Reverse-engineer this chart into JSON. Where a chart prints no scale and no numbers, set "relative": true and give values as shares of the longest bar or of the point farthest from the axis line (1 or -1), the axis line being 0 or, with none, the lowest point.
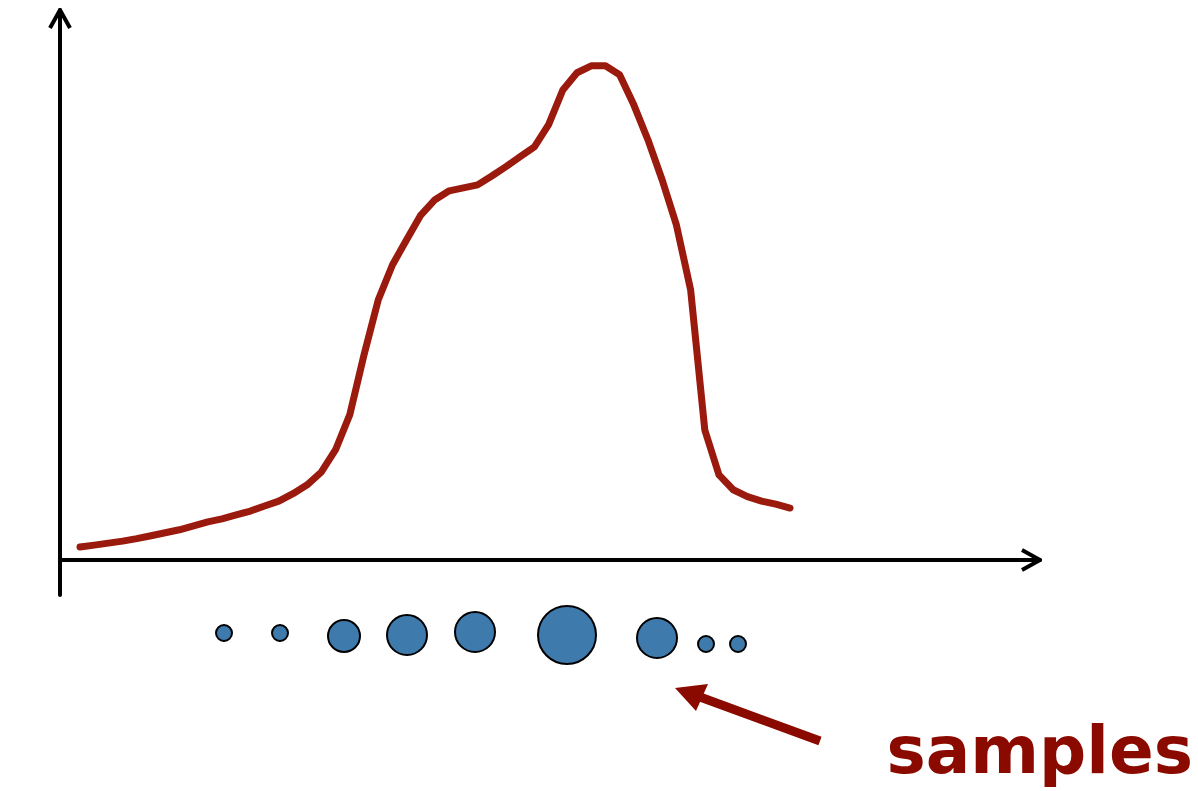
{
  "chart_data": {
    "type": "line",
    "relative": true,
    "marker": "none",
    "line_style": "solid",
    "grid": false,
    "categories": [
      null,
      null,
      null,
      null,
      null,
      null,
      null,
      null,
      null,
      null,
      null,
      null,
      null,
      null,
      null,
      null,
      null,
      null,
      null,
      null,
      null,
      null,
      null,
      null,
      null,
      null,
      null,
      null,
      null,
      null,
      null,
      null,
      null,
      null,
      null,
      null,
      null,
      null,
      null,
      null,
      null,
      null,
      null,
      null,
      null,
      null,
      null,
      null,
      null,
      null,
      null
    ],
    "series": [
      {
        "color": "#9b1a0e",
        "values": [
          0.026,
          0.03,
          0.034,
          0.038,
          0.043,
          0.049,
          0.055,
          0.061,
          0.069,
          0.077,
          0.083,
          0.091,
          0.099,
          0.109,
          0.119,
          0.134,
          0.152,
          0.178,
          0.223,
          0.294,
          0.415,
          0.526,
          0.597,
          0.648,
          0.698,
          0.729,
          0.747,
          0.753,
          0.759,
          0.777,
          0.796,
          0.816,
          0.836,
          0.881,
          0.951,
          0.986,
          1.0,
          1.0,
          0.982,
          0.921,
          0.85,
          0.769,
          0.678,
          0.547,
          0.263,
          0.172,
          0.142,
          0.128,
          0.119,
          0.113,
          0.105
        ]
      }
    ],
    "annotations": [
      "samples"
    ]
  }
}
